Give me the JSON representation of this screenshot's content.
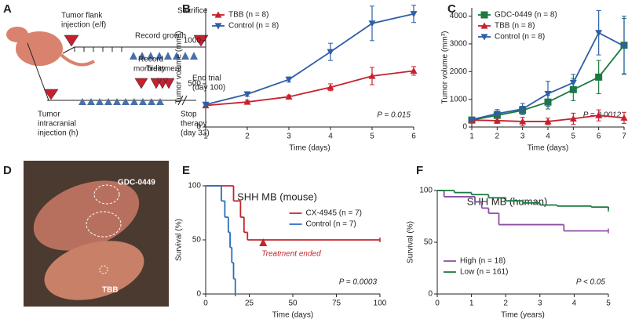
{
  "diagram": {
    "panel": "A",
    "flank_injection": [
      "Tumor flank",
      "injection (e/f)"
    ],
    "sacrifice": "Sacrifice",
    "record_growth": "Record growth",
    "treatment": "Treatment",
    "record_morbidity": [
      "Record",
      "morbidity"
    ],
    "end_trial": [
      "End trial",
      "(day 100)"
    ],
    "intracranial_injection": [
      "Tumor",
      "intracranial",
      "injection (h)"
    ],
    "stop_therapy": [
      "Stop",
      "therapy",
      "(day 33)"
    ]
  },
  "photo": {
    "panel": "D",
    "labels": [
      "GDC-0449",
      "TBB"
    ]
  },
  "chart_data": [
    {
      "panel": "B",
      "type": "line",
      "x": [
        1,
        2,
        3,
        4,
        5,
        6
      ],
      "xlim": [
        1,
        6
      ],
      "xticks": [
        1,
        2,
        3,
        4,
        5,
        6
      ],
      "ylim": [
        0,
        1380
      ],
      "yticks": [
        0,
        500,
        1000
      ],
      "xlabel": "Time (days)",
      "ylabel": "Tumor volume (mm³)",
      "legend": "upper left",
      "annotation": "P = 0.015",
      "series": [
        {
          "name": "TBB (n = 8)",
          "color": "#c8202f",
          "marker": "triangle-up",
          "values": [
            250,
            290,
            350,
            460,
            590,
            650
          ],
          "errors": [
            15,
            20,
            20,
            40,
            100,
            50
          ]
        },
        {
          "name": "Control (n = 8)",
          "color": "#2f5ea8",
          "marker": "triangle-down",
          "values": [
            260,
            380,
            550,
            870,
            1200,
            1310
          ],
          "errors": [
            20,
            25,
            30,
            100,
            200,
            100
          ]
        }
      ]
    },
    {
      "panel": "C",
      "type": "line",
      "x": [
        1,
        2,
        3,
        4,
        5,
        6,
        7
      ],
      "xlim": [
        1,
        7
      ],
      "xticks": [
        1,
        2,
        3,
        4,
        5,
        6,
        7
      ],
      "ylim": [
        0,
        4300
      ],
      "yticks": [
        0,
        1000,
        2000,
        3000,
        4000
      ],
      "xlabel": "Time (days)",
      "ylabel": "Tumor volume (mm³)",
      "legend": "upper left",
      "annotation": "P = 0.0012",
      "series": [
        {
          "name": "GDC-0449 (n = 8)",
          "color": "#1b7a3e",
          "marker": "square",
          "values": [
            250,
            420,
            600,
            900,
            1350,
            1800,
            2950
          ],
          "errors": [
            50,
            100,
            150,
            250,
            400,
            600,
            1050
          ]
        },
        {
          "name": "TBB (n = 8)",
          "color": "#c8202f",
          "marker": "triangle-up",
          "values": [
            250,
            230,
            200,
            200,
            300,
            420,
            330
          ],
          "errors": [
            50,
            100,
            150,
            120,
            200,
            200,
            200
          ]
        },
        {
          "name": "Control (n = 8)",
          "color": "#2f5ea8",
          "marker": "triangle-down",
          "values": [
            270,
            480,
            650,
            1200,
            1600,
            3400,
            2920
          ],
          "errors": [
            80,
            150,
            200,
            450,
            300,
            800,
            1000
          ]
        }
      ]
    },
    {
      "panel": "E",
      "type": "step",
      "title": "SHH MB (mouse)",
      "xlim": [
        0,
        100
      ],
      "xticks": [
        0,
        25,
        50,
        75,
        100
      ],
      "ylim": [
        0,
        100
      ],
      "yticks": [
        0,
        50,
        100
      ],
      "xlabel": "Time (days)",
      "ylabel": "Survival (%)",
      "legend": "upper right",
      "annotation": "P = 0.0003",
      "marker_annotation": {
        "text": "Treatment ended",
        "x": 33
      },
      "series": [
        {
          "name": "CX-4945 (n = 7)",
          "color": "#c0272d",
          "x": [
            0,
            16,
            20,
            22,
            24,
            100
          ],
          "values": [
            100,
            86,
            71,
            57,
            50,
            50
          ]
        },
        {
          "name": "Control (n = 7)",
          "color": "#2a6ebb",
          "x": [
            0,
            9,
            11,
            13,
            14,
            15,
            16,
            17
          ],
          "values": [
            100,
            86,
            71,
            57,
            43,
            29,
            14,
            0
          ]
        }
      ]
    },
    {
      "panel": "F",
      "type": "step",
      "title": "SHH MB (human)",
      "xlim": [
        0,
        5
      ],
      "xticks": [
        0,
        1,
        2,
        3,
        4,
        5
      ],
      "ylim": [
        0,
        100
      ],
      "yticks": [
        0,
        50,
        100
      ],
      "xlabel": "Time (years)",
      "ylabel": "Survival (%)",
      "legend": "lower left",
      "annotation": "P < 0.05",
      "series": [
        {
          "name": "High (n = 18)",
          "color": "#8e4fa3",
          "x": [
            0,
            0.2,
            1.1,
            1.3,
            1.5,
            1.8,
            3.7,
            5
          ],
          "values": [
            100,
            94,
            89,
            83,
            78,
            67,
            61,
            61
          ]
        },
        {
          "name": "Low (n = 161)",
          "color": "#1b7a3e",
          "x": [
            0,
            0.5,
            1,
            1.5,
            2,
            2.5,
            3,
            3.5,
            4,
            4.5,
            5
          ],
          "values": [
            100,
            98,
            96,
            93,
            90,
            88,
            86,
            85,
            85,
            84,
            82
          ]
        }
      ]
    }
  ]
}
